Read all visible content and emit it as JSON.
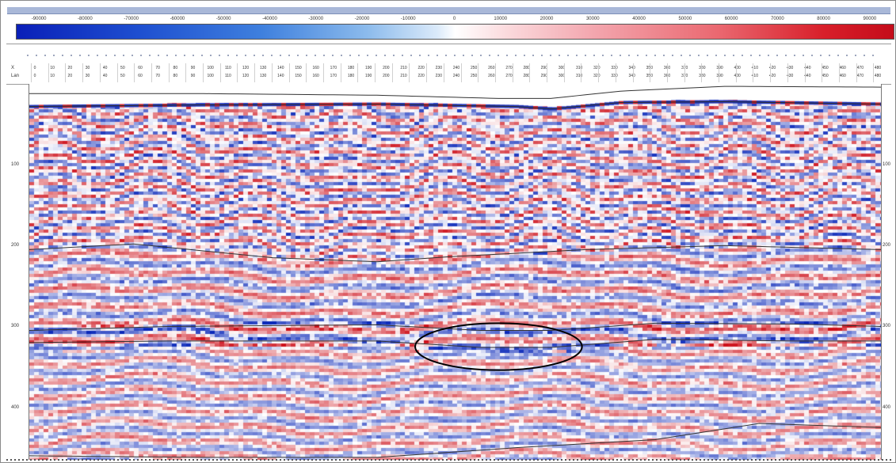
{
  "window": {
    "title": "",
    "title_bar_color": "#a9b8d8"
  },
  "colorbar": {
    "ticks": [
      "-90000",
      "-80000",
      "-70000",
      "-60000",
      "-50000",
      "-40000",
      "-30000",
      "-20000",
      "-10000",
      "0",
      "10000",
      "20000",
      "30000",
      "40000",
      "50000",
      "60000",
      "70000",
      "80000",
      "90000"
    ],
    "min": -95000,
    "max": 95000,
    "colors": {
      "negative": "#0a1fb8",
      "zero": "#ffffff",
      "positive": "#c40c1a"
    }
  },
  "trace_header": {
    "row_labels": [
      "X",
      "Lan"
    ],
    "row1": [
      "0",
      "10",
      "20",
      "30",
      "40",
      "50",
      "60",
      "70",
      "80",
      "90",
      "100",
      "110",
      "120",
      "130",
      "140",
      "150",
      "160",
      "170",
      "180",
      "190",
      "200",
      "210",
      "220",
      "230",
      "240",
      "250",
      "260",
      "270",
      "280",
      "290",
      "300",
      "310",
      "320",
      "330",
      "340",
      "350",
      "360",
      "370",
      "380",
      "390",
      "400",
      "410",
      "420",
      "430",
      "440",
      "450",
      "460",
      "470",
      "480"
    ],
    "row2": [
      "0",
      "10",
      "20",
      "30",
      "40",
      "50",
      "60",
      "70",
      "80",
      "90",
      "100",
      "110",
      "120",
      "130",
      "140",
      "150",
      "160",
      "170",
      "180",
      "190",
      "200",
      "210",
      "220",
      "230",
      "240",
      "250",
      "260",
      "270",
      "280",
      "290",
      "300",
      "310",
      "320",
      "330",
      "340",
      "350",
      "360",
      "370",
      "380",
      "390",
      "400",
      "410",
      "420",
      "430",
      "440",
      "450",
      "460",
      "470",
      "480"
    ]
  },
  "time_axis": {
    "labels": [
      "100",
      "200",
      "300",
      "400"
    ],
    "values": [
      100,
      200,
      300,
      400
    ],
    "range": [
      0,
      465
    ]
  },
  "section": {
    "trace_count": 490,
    "annotation": {
      "shape": "ellipse",
      "color": "#000000",
      "trace_center": 270,
      "time_center": 325,
      "trace_radius": 48,
      "time_radius": 29
    }
  },
  "chart_data": {
    "type": "heatmap",
    "title": "",
    "xlabel": "",
    "ylabel": "",
    "x_range": [
      0,
      490
    ],
    "y_range": [
      0,
      465
    ],
    "y_tick_labels": [
      "100",
      "200",
      "300",
      "400"
    ],
    "colorbar_ticks": [
      -90000,
      -80000,
      -70000,
      -60000,
      -50000,
      -40000,
      -30000,
      -20000,
      -10000,
      0,
      10000,
      20000,
      30000,
      40000,
      50000,
      60000,
      70000,
      80000,
      90000
    ],
    "horizons": [
      {
        "points": [
          [
            0,
            12
          ],
          [
            100,
            12
          ],
          [
            200,
            14
          ],
          [
            270,
            18
          ],
          [
            300,
            18
          ],
          [
            340,
            9
          ],
          [
            400,
            3
          ],
          [
            490,
            4
          ]
        ]
      },
      {
        "points": [
          [
            0,
            28
          ],
          [
            100,
            26
          ],
          [
            200,
            25
          ],
          [
            280,
            28
          ],
          [
            300,
            31
          ],
          [
            340,
            23
          ],
          [
            400,
            22
          ],
          [
            490,
            25
          ]
        ]
      },
      {
        "points": [
          [
            0,
            205
          ],
          [
            60,
            198
          ],
          [
            140,
            215
          ],
          [
            200,
            220
          ],
          [
            240,
            214
          ],
          [
            320,
            205
          ],
          [
            400,
            200
          ],
          [
            490,
            205
          ]
        ]
      },
      {
        "points": [
          [
            0,
            305
          ],
          [
            80,
            300
          ],
          [
            200,
            298
          ],
          [
            260,
            305
          ],
          [
            300,
            305
          ],
          [
            360,
            296
          ],
          [
            440,
            297
          ],
          [
            490,
            300
          ]
        ]
      },
      {
        "points": [
          [
            0,
            320
          ],
          [
            80,
            318
          ],
          [
            200,
            318
          ],
          [
            260,
            326
          ],
          [
            300,
            326
          ],
          [
            360,
            316
          ],
          [
            440,
            318
          ],
          [
            490,
            318
          ]
        ]
      },
      {
        "points": [
          [
            0,
            460
          ],
          [
            100,
            462
          ],
          [
            200,
            462
          ],
          [
            280,
            450
          ],
          [
            360,
            440
          ],
          [
            420,
            420
          ],
          [
            490,
            425
          ]
        ]
      }
    ]
  }
}
